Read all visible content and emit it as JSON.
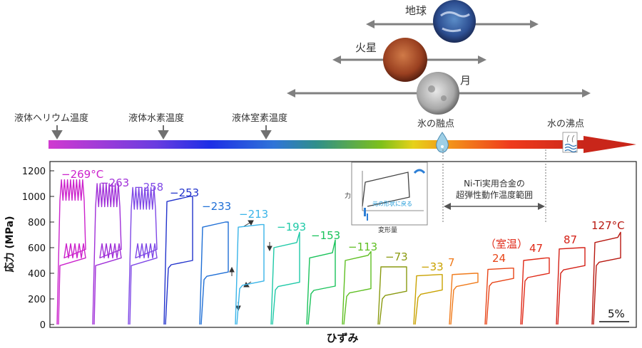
{
  "chart_data": {
    "type": "line",
    "title": "",
    "ylabel": "応力 (MPa)",
    "xlabel": "ひずみ",
    "ylim": [
      0,
      1300
    ],
    "yticks": [
      0,
      200,
      400,
      600,
      800,
      1000,
      1200
    ],
    "scale_bar": "5%",
    "series": [
      {
        "label": "−269°C",
        "color": "#cc22cc",
        "upper": 970,
        "lower": 520,
        "peak": 1130,
        "serrated": true
      },
      {
        "label": "−263",
        "color": "#a030d8",
        "upper": 920,
        "lower": 520,
        "peak": 1100,
        "serrated": true
      },
      {
        "label": "−258",
        "color": "#7f48e6",
        "upper": 900,
        "lower": 520,
        "peak": 1070,
        "serrated": true
      },
      {
        "label": "−253",
        "color": "#2233cc",
        "upper": 960,
        "lower": 500,
        "peak": 1000,
        "serrated": false
      },
      {
        "label": "−233",
        "color": "#1f6fd6",
        "upper": 760,
        "lower": 410,
        "peak": 800,
        "serrated": false
      },
      {
        "label": "−213",
        "color": "#39b4e8",
        "upper": 760,
        "lower": 340,
        "peak": 780,
        "serrated": false
      },
      {
        "label": "−193",
        "color": "#1ec9a7",
        "upper": 600,
        "lower": 330,
        "peak": 720,
        "serrated": false
      },
      {
        "label": "−153",
        "color": "#19c25a",
        "upper": 520,
        "lower": 300,
        "peak": 660,
        "serrated": false
      },
      {
        "label": "−113",
        "color": "#5fbf22",
        "upper": 500,
        "lower": 280,
        "peak": 570,
        "serrated": false
      },
      {
        "label": "−73",
        "color": "#8a9a10",
        "upper": 450,
        "lower": 260,
        "peak": 450,
        "serrated": false
      },
      {
        "label": "−33",
        "color": "#c9a200",
        "upper": 380,
        "lower": 270,
        "peak": 390,
        "serrated": false
      },
      {
        "label": "7",
        "color": "#f07a1a",
        "upper": 390,
        "lower": 330,
        "peak": 400,
        "serrated": false
      },
      {
        "label": "24",
        "color": "#e84518",
        "upper": 430,
        "lower": 360,
        "peak": 440,
        "serrated": false
      },
      {
        "label": "47",
        "color": "#e02a18",
        "upper": 500,
        "lower": 400,
        "peak": 520,
        "serrated": false
      },
      {
        "label": "87",
        "color": "#d42016",
        "upper": 590,
        "lower": 460,
        "peak": 600,
        "serrated": false
      },
      {
        "label": "127°C",
        "color": "#b81810",
        "upper": 640,
        "lower": 520,
        "peak": 720,
        "serrated": false
      }
    ],
    "room_temp_label": "（室温）",
    "superelastic_range_label_1": "Ni-Ti実用合金の",
    "superelastic_range_label_2": "超弾性動作温度範囲"
  },
  "top_section": {
    "temperature_markers": [
      "液体ヘリウム温度",
      "液体水素温度",
      "液体室素温度",
      "氷の融点",
      "水の沸点"
    ],
    "planets": [
      "地球",
      "火星",
      "月"
    ]
  },
  "inset": {
    "y_label": "力",
    "x_label": "変形量",
    "caption": "元の形状に戻る"
  }
}
